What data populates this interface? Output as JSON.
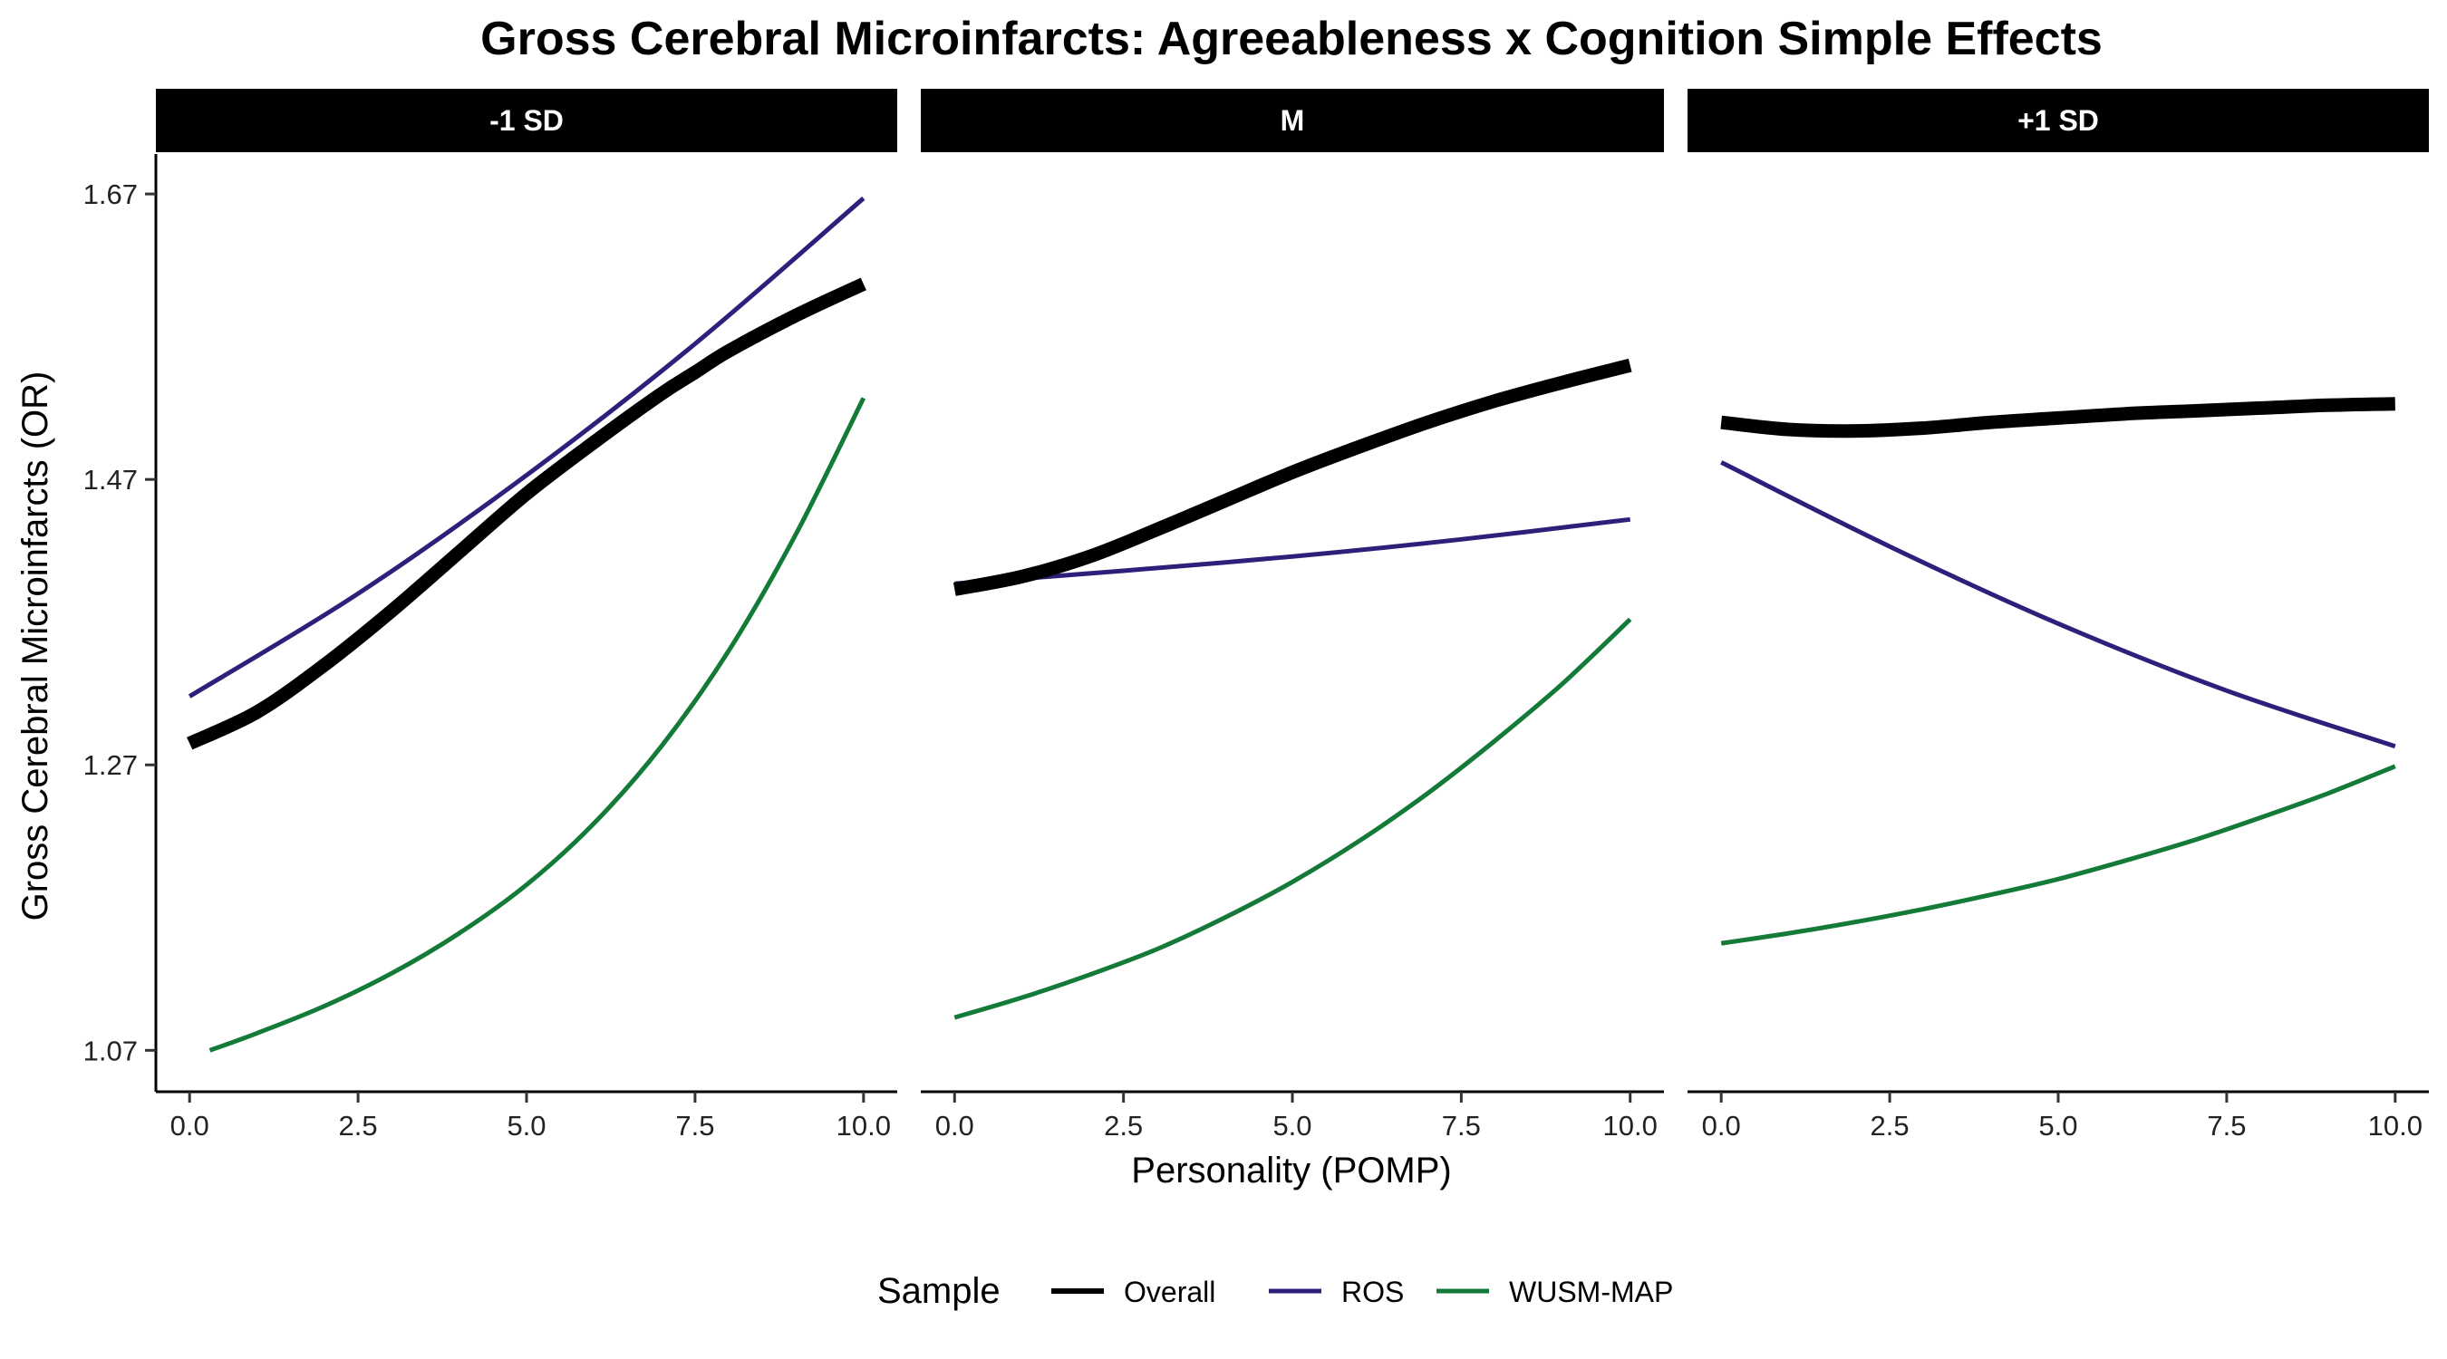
{
  "chart_data": {
    "type": "line",
    "title": "Gross Cerebral Microinfarcts: Agreeableness x Cognition Simple Effects",
    "xlabel": "Personality (POMP)",
    "ylabel": "Gross Cerebral Microinfarcts (OR)",
    "xlim": [
      -0.5,
      10.5
    ],
    "ylim": [
      1.041,
      1.698
    ],
    "x_ticks": [
      0,
      2.5,
      5,
      7.5,
      10
    ],
    "x_tick_labels": [
      "0.0",
      "2.5",
      "5.0",
      "7.5",
      "10.0"
    ],
    "y_ticks": [
      1.07,
      1.27,
      1.47,
      1.67
    ],
    "y_tick_labels": [
      "1.07",
      "1.27",
      "1.47",
      "1.67"
    ],
    "grid": false,
    "legend": {
      "title": "Sample",
      "placement": "bottom",
      "entries": [
        {
          "name": "Overall",
          "color": "#000000"
        },
        {
          "name": "ROS",
          "color": "#2e1f7a"
        },
        {
          "name": "WUSM-MAP",
          "color": "#137a38"
        }
      ]
    },
    "facets": [
      {
        "label": "-1 SD",
        "series": [
          {
            "name": "Overall",
            "color": "#000000",
            "x": [
              0,
              1,
              2,
              3,
              4,
              5,
              6,
              7,
              7.5,
              8,
              9,
              10
            ],
            "y": [
              1.285,
              1.307,
              1.34,
              1.378,
              1.419,
              1.46,
              1.496,
              1.53,
              1.545,
              1.56,
              1.585,
              1.607
            ]
          },
          {
            "name": "ROS",
            "color": "#2e1f7a",
            "x": [
              0,
              2.5,
              5,
              7.5,
              10
            ],
            "y": [
              1.318,
              1.39,
              1.473,
              1.565,
              1.667
            ]
          },
          {
            "name": "WUSM-MAP",
            "color": "#137a38",
            "x": [
              0.3,
              1,
              2,
              3,
              4,
              5,
              6,
              7,
              8,
              9,
              10
            ],
            "y": [
              1.07,
              1.082,
              1.101,
              1.124,
              1.152,
              1.186,
              1.229,
              1.283,
              1.35,
              1.432,
              1.527
            ]
          }
        ]
      },
      {
        "label": "M",
        "series": [
          {
            "name": "Overall",
            "color": "#000000",
            "x": [
              0,
              1,
              2,
              3,
              4,
              5,
              6,
              7,
              8,
              9,
              10
            ],
            "y": [
              1.393,
              1.402,
              1.416,
              1.435,
              1.455,
              1.475,
              1.493,
              1.51,
              1.525,
              1.538,
              1.55
            ]
          },
          {
            "name": "ROS",
            "color": "#2e1f7a",
            "x": [
              0,
              2.5,
              5,
              7.5,
              10
            ],
            "y": [
              1.397,
              1.406,
              1.416,
              1.428,
              1.442
            ]
          },
          {
            "name": "WUSM-MAP",
            "color": "#137a38",
            "x": [
              0,
              1,
              2,
              3,
              4,
              5,
              6,
              7,
              8,
              9,
              10
            ],
            "y": [
              1.093,
              1.107,
              1.123,
              1.141,
              1.163,
              1.188,
              1.217,
              1.25,
              1.287,
              1.327,
              1.372
            ]
          }
        ]
      },
      {
        "label": "+1 SD",
        "series": [
          {
            "name": "Overall",
            "color": "#000000",
            "x": [
              0,
              1,
              2,
              3,
              4,
              5,
              6,
              7,
              8,
              9,
              10
            ],
            "y": [
              1.51,
              1.505,
              1.504,
              1.506,
              1.51,
              1.513,
              1.516,
              1.518,
              1.52,
              1.522,
              1.523
            ]
          },
          {
            "name": "ROS",
            "color": "#2e1f7a",
            "x": [
              0,
              2.5,
              5,
              7.5,
              10
            ],
            "y": [
              1.482,
              1.423,
              1.369,
              1.322,
              1.283
            ]
          },
          {
            "name": "WUSM-MAP",
            "color": "#137a38",
            "x": [
              0,
              1,
              2,
              3,
              4,
              5,
              6,
              7,
              8,
              9,
              10
            ],
            "y": [
              1.145,
              1.152,
              1.16,
              1.169,
              1.179,
              1.19,
              1.203,
              1.217,
              1.233,
              1.25,
              1.269
            ]
          }
        ]
      }
    ]
  }
}
